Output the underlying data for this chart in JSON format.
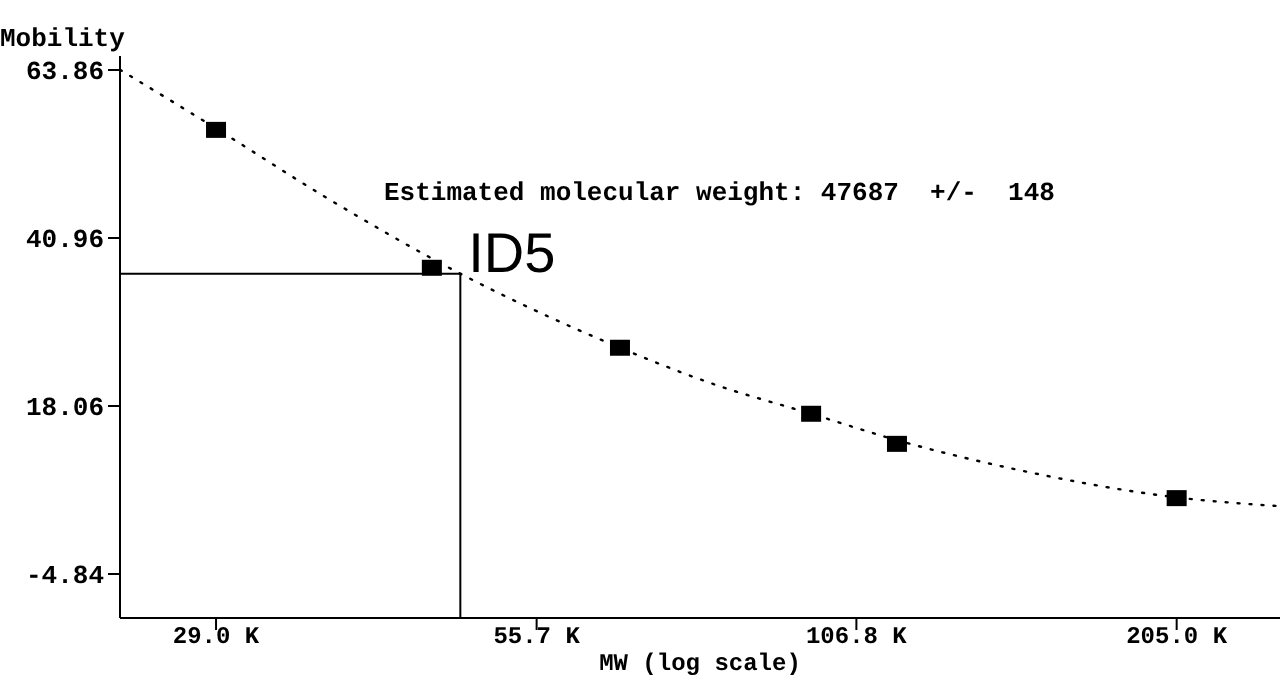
{
  "chart_data": {
    "type": "scatter",
    "xlabel": "MW (log scale)",
    "ylabel": "Mobility",
    "log": "x",
    "xlim": [
      23850,
      253000
    ],
    "ylim": [
      -10.84,
      65.77
    ],
    "xticks": [
      {
        "value": 29000,
        "label": "29.0 K"
      },
      {
        "value": 55700,
        "label": "55.7 K"
      },
      {
        "value": 106800,
        "label": "106.8 K"
      },
      {
        "value": 205000,
        "label": "205.0 K"
      }
    ],
    "yticks": [
      -4.84,
      18.06,
      40.96,
      63.86
    ],
    "marker": "square",
    "x": [
      29000,
      45000,
      66000,
      97400,
      116000,
      205000
    ],
    "series": [
      {
        "color": "#000000",
        "values": [
          55.7,
          36.9,
          26.0,
          17.0,
          12.9,
          5.5
        ]
      },
      {
        "type": "line",
        "line_style": "dotted",
        "marker": "none",
        "color": "#000000",
        "x": [
          23850,
          29000,
          36000,
          47687,
          66000,
          80000,
          97400,
          116000,
          150000,
          205000,
          253000
        ],
        "values": [
          63.9,
          55.9,
          46.8,
          36.1,
          26.0,
          21.0,
          17.0,
          13.4,
          9.2,
          5.6,
          4.4
        ]
      }
    ],
    "annotations": [
      "Estimated molecular weight: 47687  +/-  148",
      {
        "text": "ID5",
        "x": 47687,
        "y": 36.1
      }
    ]
  }
}
